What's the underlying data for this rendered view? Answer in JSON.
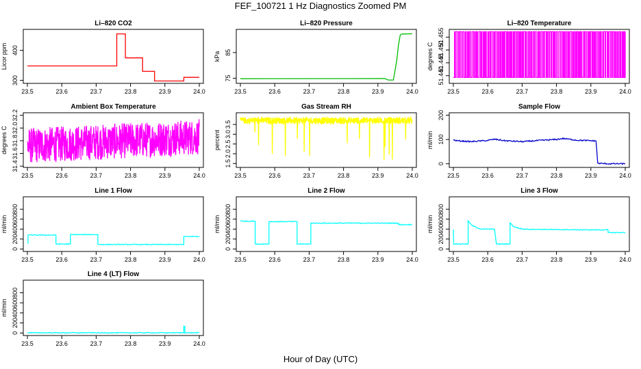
{
  "page": {
    "title": "FEF_100721  1 Hz Diagnostics Zoomed PM",
    "xlabel": "Hour of Day (UTC)"
  },
  "chart_data": [
    {
      "type": "line",
      "title": "Li–820 CO2",
      "ylabel": "Licor ppm",
      "color": "#ff0000",
      "xlim": [
        23.5,
        24.0
      ],
      "x_ticks": [
        "23.5",
        "23.6",
        "23.7",
        "23.8",
        "23.9",
        "24.0"
      ],
      "ylim": [
        290,
        470
      ],
      "y_ticks": [
        300,
        400
      ],
      "series": [
        {
          "x": [
            23.5,
            23.76,
            23.76,
            23.785,
            23.785,
            23.835,
            23.835,
            23.87,
            23.87,
            23.955,
            23.955,
            24.0
          ],
          "y": [
            348,
            348,
            455,
            455,
            375,
            375,
            330,
            330,
            298,
            298,
            310,
            310
          ]
        }
      ]
    },
    {
      "type": "line",
      "title": "Li–820 Pressure",
      "ylabel": "kPa",
      "color": "#00bb00",
      "xlim": [
        23.5,
        24.0
      ],
      "x_ticks": [
        "23.5",
        "23.6",
        "23.7",
        "23.8",
        "23.9",
        "24.0"
      ],
      "ylim": [
        73,
        94
      ],
      "y_ticks": [
        75,
        85
      ],
      "series": [
        {
          "x": [
            23.5,
            23.92,
            23.93,
            23.945,
            23.955,
            23.96,
            23.965,
            23.97,
            24.0
          ],
          "y": [
            74.8,
            74.9,
            74.3,
            74.3,
            82,
            88,
            91.8,
            92.2,
            92.3
          ]
        }
      ]
    },
    {
      "type": "line",
      "title": "Li–820 Temperature",
      "ylabel": "degrees C",
      "color": "#ff00ff",
      "xlim": [
        23.5,
        24.0
      ],
      "x_ticks": [
        "23.5",
        "23.6",
        "23.7",
        "23.8",
        "23.9",
        "24.0"
      ],
      "ylim": [
        51.437,
        51.458
      ],
      "y_ticks": [
        51.44,
        51.445,
        51.45,
        51.455
      ],
      "series": [
        {
          "x": [
            23.5,
            24.0
          ],
          "y": [
            51.4393,
            51.4571
          ]
        }
      ]
    },
    {
      "type": "line",
      "title": "Ambient Box Temperature",
      "ylabel": "degrees C",
      "color": "#ff00ff",
      "xlim": [
        23.5,
        24.0
      ],
      "x_ticks": [
        "23.5",
        "23.6",
        "23.7",
        "23.8",
        "23.9",
        "24.0"
      ],
      "ylim": [
        31.38,
        32.24
      ],
      "y_ticks": [
        31.4,
        31.6,
        31.8,
        32.0,
        32.2
      ],
      "series": [
        {
          "x": [
            23.5,
            23.75,
            24.0
          ],
          "y": [
            31.72,
            31.78,
            31.86
          ]
        }
      ]
    },
    {
      "type": "line",
      "title": "Gas Stream RH",
      "ylabel": "percent",
      "color": "#ffff00",
      "xlim": [
        23.5,
        24.0
      ],
      "x_ticks": [
        "23.5",
        "23.6",
        "23.7",
        "23.8",
        "23.9",
        "24.0"
      ],
      "ylim": [
        1.3,
        4.1
      ],
      "y_ticks": [
        1.5,
        2.0,
        2.5,
        3.0,
        3.5
      ],
      "series": [
        {
          "x": [
            23.5,
            24.0
          ],
          "y": [
            3.7,
            3.7
          ]
        }
      ]
    },
    {
      "type": "line",
      "title": "Sample Flow",
      "ylabel": "ml/min",
      "color": "#0000cc",
      "xlim": [
        23.5,
        24.0
      ],
      "x_ticks": [
        "23.5",
        "23.6",
        "23.7",
        "23.8",
        "23.9",
        "24.0"
      ],
      "ylim": [
        -15,
        210
      ],
      "y_ticks": [
        0,
        100,
        200
      ],
      "series": [
        {
          "x": [
            23.5,
            23.51,
            23.55,
            23.6,
            23.62,
            23.65,
            23.7,
            23.75,
            23.8,
            23.82,
            23.86,
            23.9,
            23.915,
            23.92,
            23.95,
            24.0
          ],
          "y": [
            98,
            95,
            91,
            96,
            101,
            95,
            91,
            96,
            100,
            104,
            97,
            95,
            94,
            2,
            0,
            0
          ]
        }
      ]
    },
    {
      "type": "line",
      "title": "Line 1 Flow",
      "ylabel": "ml/min",
      "color": "#00ffff",
      "xlim": [
        23.5,
        24.0
      ],
      "x_ticks": [
        "23.5",
        "23.6",
        "23.7",
        "23.8",
        "23.9",
        "24.0"
      ],
      "ylim": [
        -50,
        1050
      ],
      "y_ticks": [
        0,
        200,
        400,
        600,
        800
      ],
      "series": [
        {
          "x": [
            23.5,
            23.502,
            23.502,
            23.583,
            23.583,
            23.625,
            23.625,
            23.705,
            23.705,
            23.955,
            23.955,
            24.0
          ],
          "y": [
            120,
            120,
            280,
            280,
            100,
            100,
            290,
            290,
            90,
            90,
            250,
            250
          ]
        }
      ]
    },
    {
      "type": "line",
      "title": "Line 2 Flow",
      "ylabel": "ml/min",
      "color": "#00ffff",
      "xlim": [
        23.5,
        24.0
      ],
      "x_ticks": [
        "23.5",
        "23.6",
        "23.7",
        "23.8",
        "23.9",
        "24.0"
      ],
      "ylim": [
        -50,
        1050
      ],
      "y_ticks": [
        0,
        200,
        400,
        600,
        800
      ],
      "series": [
        {
          "x": [
            23.5,
            23.543,
            23.543,
            23.583,
            23.583,
            23.665,
            23.665,
            23.705,
            23.705,
            23.96,
            23.96,
            24.0
          ],
          "y": [
            560,
            560,
            100,
            100,
            550,
            550,
            100,
            100,
            520,
            520,
            490,
            490
          ]
        }
      ]
    },
    {
      "type": "line",
      "title": "Line 3 Flow",
      "ylabel": "ml/min",
      "color": "#00ffff",
      "xlim": [
        23.5,
        24.0
      ],
      "x_ticks": [
        "23.5",
        "23.6",
        "23.7",
        "23.8",
        "23.9",
        "24.0"
      ],
      "ylim": [
        -50,
        1050
      ],
      "y_ticks": [
        0,
        200,
        400,
        600,
        800
      ],
      "series": [
        {
          "x": [
            23.5,
            23.501,
            23.501,
            23.543,
            23.543,
            23.555,
            23.58,
            23.62,
            23.625,
            23.625,
            23.665,
            23.665,
            23.675,
            23.7,
            23.8,
            23.9,
            23.95,
            23.95,
            24.0
          ],
          "y": [
            400,
            100,
            100,
            100,
            560,
            470,
            400,
            400,
            100,
            100,
            100,
            530,
            450,
            400,
            390,
            385,
            385,
            330,
            330
          ]
        }
      ]
    },
    {
      "type": "line",
      "title": "Line 4 (LT) Flow",
      "ylabel": "ml/min",
      "color": "#00ffff",
      "xlim": [
        23.5,
        24.0
      ],
      "x_ticks": [
        "23.5",
        "23.6",
        "23.7",
        "23.8",
        "23.9",
        "24.0"
      ],
      "ylim": [
        -50,
        1050
      ],
      "y_ticks": [
        0,
        200,
        400,
        600,
        800
      ],
      "series": [
        {
          "x": [
            23.5,
            23.955,
            23.955,
            23.958,
            23.958,
            24.0
          ],
          "y": [
            5,
            5,
            130,
            130,
            5,
            5
          ]
        }
      ]
    }
  ]
}
